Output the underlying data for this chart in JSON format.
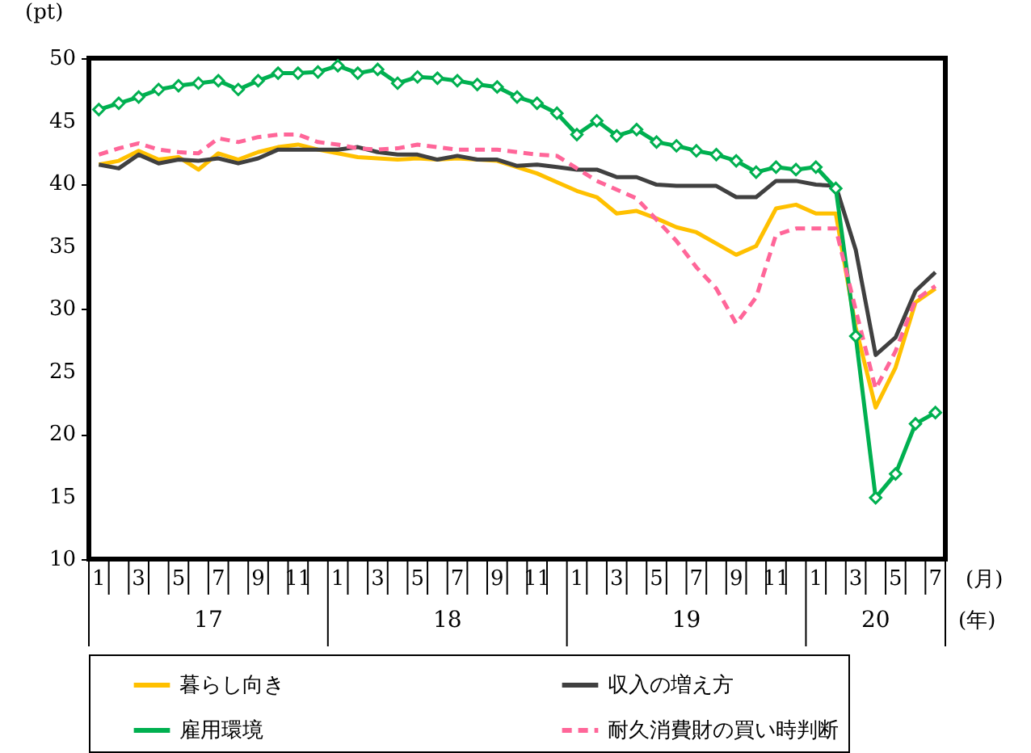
{
  "chart_data": {
    "type": "line",
    "ylabel": "(pt)",
    "xlabel": "(月)",
    "categories": [
      "1",
      null,
      "3",
      null,
      "5",
      null,
      "7",
      null,
      "9",
      null,
      "11",
      null,
      "1",
      null,
      "3",
      null,
      "5",
      null,
      "7",
      null,
      "9",
      null,
      "11",
      null,
      "1",
      null,
      "3",
      null,
      "5",
      null,
      "7",
      null,
      "9",
      null,
      "11",
      null,
      "1",
      null,
      "3",
      null,
      "5",
      null,
      "7"
    ],
    "annotations": [
      "(年)",
      "17",
      "18",
      "19",
      "20"
    ],
    "ylim": [
      10,
      50
    ],
    "yticks": [
      10,
      15,
      20,
      25,
      30,
      35,
      40,
      45,
      50
    ],
    "grid": false,
    "legend": "bottom",
    "line_style": "solid",
    "marker": "none",
    "series": [
      {
        "name": "暮らし向き",
        "color": "#ffc000",
        "values": [
          41.5,
          41.8,
          42.6,
          41.9,
          42.1,
          41.1,
          42.4,
          41.9,
          42.5,
          42.9,
          43.1,
          42.7,
          42.4,
          42.1,
          42.0,
          41.9,
          42.0,
          41.9,
          42.0,
          41.9,
          41.8,
          41.3,
          40.8,
          40.1,
          39.4,
          38.9,
          37.6,
          37.8,
          37.2,
          36.5,
          36.1,
          35.2,
          34.3,
          35.0,
          38.0,
          38.3,
          37.6,
          37.6,
          28.5,
          22.1,
          25.3,
          30.5,
          31.6
        ]
      },
      {
        "name": "収入の増え方",
        "color": "#404040",
        "values": [
          41.5,
          41.2,
          42.3,
          41.6,
          41.9,
          41.8,
          42.0,
          41.6,
          42.0,
          42.7,
          42.7,
          42.7,
          42.7,
          42.9,
          42.5,
          42.3,
          42.3,
          41.9,
          42.2,
          41.9,
          41.9,
          41.4,
          41.5,
          41.3,
          41.1,
          41.1,
          40.5,
          40.5,
          39.9,
          39.8,
          39.8,
          39.8,
          38.9,
          38.9,
          40.2,
          40.2,
          39.9,
          39.8,
          34.7,
          26.3,
          27.7,
          31.4,
          32.9
        ]
      },
      {
        "name": "雇用環境",
        "color": "#00b050",
        "marker": "diamond",
        "values": [
          45.9,
          46.4,
          46.9,
          47.5,
          47.8,
          48.0,
          48.2,
          47.5,
          48.2,
          48.8,
          48.8,
          48.9,
          49.4,
          48.8,
          49.1,
          48.0,
          48.5,
          48.4,
          48.2,
          47.9,
          47.7,
          46.9,
          46.4,
          45.6,
          43.9,
          45.0,
          43.8,
          44.3,
          43.3,
          43.0,
          42.6,
          42.3,
          41.8,
          40.9,
          41.3,
          41.1,
          41.3,
          39.6,
          27.8,
          14.9,
          16.8,
          20.8,
          21.7
        ]
      },
      {
        "name": "耐久消費財の買い時判断",
        "color": "#ff6699",
        "line_style": "dashed",
        "values": [
          42.3,
          42.8,
          43.2,
          42.7,
          42.5,
          42.4,
          43.6,
          43.3,
          43.7,
          43.9,
          43.9,
          43.3,
          43.1,
          42.8,
          42.7,
          42.8,
          43.1,
          42.9,
          42.7,
          42.7,
          42.7,
          42.5,
          42.3,
          42.2,
          41.2,
          40.2,
          39.5,
          38.8,
          37.1,
          35.4,
          33.3,
          31.6,
          28.8,
          30.9,
          35.9,
          36.4,
          36.4,
          36.4,
          29.9,
          23.6,
          26.6,
          30.7,
          31.8
        ]
      }
    ]
  }
}
